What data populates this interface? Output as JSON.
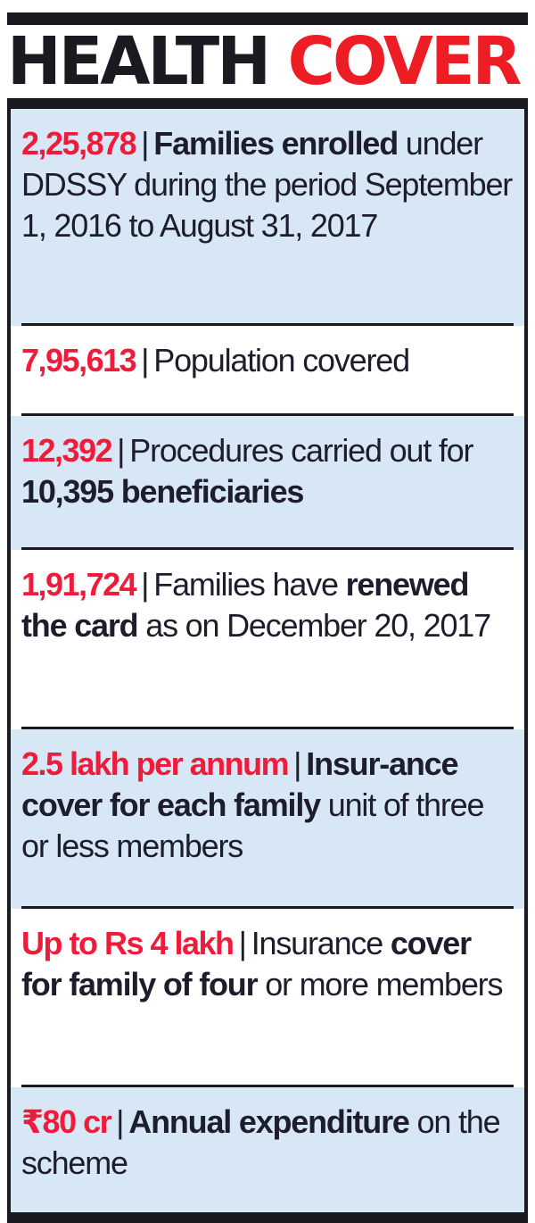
{
  "headline": {
    "part1": "HEALTH",
    "part2": "COVER"
  },
  "colors": {
    "accent_red": "#ee1c24",
    "ink": "#1b1a20",
    "panel_blue": "#d7e7f5",
    "panel_white": "#ffffff"
  },
  "separator": "|",
  "facts": [
    {
      "lead": "2,25,878",
      "text_bold": "Families enrolled",
      "text": " under DDSSY during the period September 1, 2016 to August 31, 2017"
    },
    {
      "lead": "7,95,613",
      "text": "Population covered"
    },
    {
      "lead": "12,392",
      "text": "Procedures carried out for ",
      "text_bold": "10,395 beneficiaries"
    },
    {
      "lead": "1,91,724",
      "text": "Families have ",
      "text_bold": "renewed the card",
      "text_after": " as on December 20, 2017"
    },
    {
      "lead": "2.5 lakh per annum",
      "text_bold": "Insur-ance cover for each family",
      "text": " unit of three or less members"
    },
    {
      "lead": "Up to Rs 4 lakh",
      "text": "Insurance ",
      "text_bold": "cover for family of four",
      "text_after": " or more members"
    },
    {
      "lead": "₹80 cr",
      "text_bold": "Annual expenditure",
      "text": " on the scheme"
    }
  ]
}
